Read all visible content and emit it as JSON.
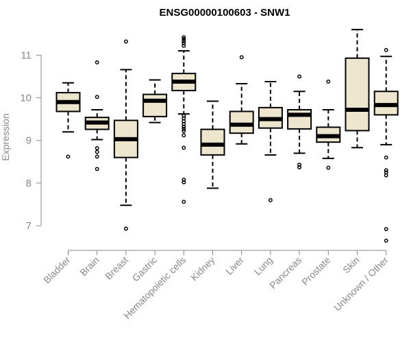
{
  "chart_data": {
    "type": "boxplot",
    "title": "ENSG00000100603 - SNW1",
    "xlabel": "",
    "ylabel": "Expression",
    "ylim": [
      6.55,
      11.65
    ],
    "yticks": [
      "7",
      "8",
      "9",
      "10",
      "11"
    ],
    "box_fill": "#ede5cc",
    "categories": [
      "Bladder",
      "Brain",
      "Breast",
      "Gastric",
      "Hematopoietic cells",
      "Kidney",
      "Liver",
      "Lung",
      "Pancreas",
      "Prostate",
      "Skin",
      "Unknown / Other"
    ],
    "boxes": [
      {
        "name": "Bladder",
        "whisker_low": 9.2,
        "q1": 9.68,
        "median": 9.9,
        "q3": 10.12,
        "whisker_high": 10.35,
        "outliers": [
          8.62
        ]
      },
      {
        "name": "Brain",
        "whisker_low": 9.02,
        "q1": 9.26,
        "median": 9.42,
        "q3": 9.54,
        "whisker_high": 9.72,
        "outliers": [
          10.83,
          10.02,
          8.82,
          8.73,
          8.62,
          8.33
        ]
      },
      {
        "name": "Breast",
        "whisker_low": 7.48,
        "q1": 8.6,
        "median": 9.03,
        "q3": 9.47,
        "whisker_high": 10.66,
        "outliers": [
          11.32,
          6.93
        ]
      },
      {
        "name": "Gastric",
        "whisker_low": 9.42,
        "q1": 9.56,
        "median": 9.93,
        "q3": 10.08,
        "whisker_high": 10.42,
        "outliers": []
      },
      {
        "name": "Hematopoietic cells",
        "whisker_low": 9.62,
        "q1": 10.17,
        "median": 10.38,
        "q3": 10.57,
        "whisker_high": 11.1,
        "outliers": [
          11.42,
          11.38,
          11.33,
          11.28,
          11.22,
          9.58,
          9.52,
          9.45,
          9.38,
          9.32,
          9.27,
          9.22,
          9.12,
          8.83,
          8.08,
          8.02,
          7.56
        ]
      },
      {
        "name": "Kidney",
        "whisker_low": 7.88,
        "q1": 8.66,
        "median": 8.9,
        "q3": 9.26,
        "whisker_high": 9.92,
        "outliers": []
      },
      {
        "name": "Liver",
        "whisker_low": 8.92,
        "q1": 9.17,
        "median": 9.37,
        "q3": 9.68,
        "whisker_high": 10.33,
        "outliers": [
          10.95
        ]
      },
      {
        "name": "Lung",
        "whisker_low": 8.66,
        "q1": 9.29,
        "median": 9.5,
        "q3": 9.77,
        "whisker_high": 10.38,
        "outliers": [
          7.6
        ]
      },
      {
        "name": "Pancreas",
        "whisker_low": 8.7,
        "q1": 9.27,
        "median": 9.6,
        "q3": 9.72,
        "whisker_high": 10.15,
        "outliers": [
          10.5,
          8.43,
          8.37
        ]
      },
      {
        "name": "Prostate",
        "whisker_low": 8.58,
        "q1": 8.96,
        "median": 9.1,
        "q3": 9.31,
        "whisker_high": 9.72,
        "outliers": [
          10.38,
          8.36
        ]
      },
      {
        "name": "Skin",
        "whisker_low": 8.83,
        "q1": 9.23,
        "median": 9.72,
        "q3": 10.93,
        "whisker_high": 11.6,
        "outliers": []
      },
      {
        "name": "Unknown / Other",
        "whisker_low": 8.9,
        "q1": 9.6,
        "median": 9.83,
        "q3": 10.15,
        "whisker_high": 10.97,
        "outliers": [
          11.12,
          8.6,
          8.3,
          8.25,
          8.18,
          6.92,
          6.65
        ]
      }
    ]
  }
}
